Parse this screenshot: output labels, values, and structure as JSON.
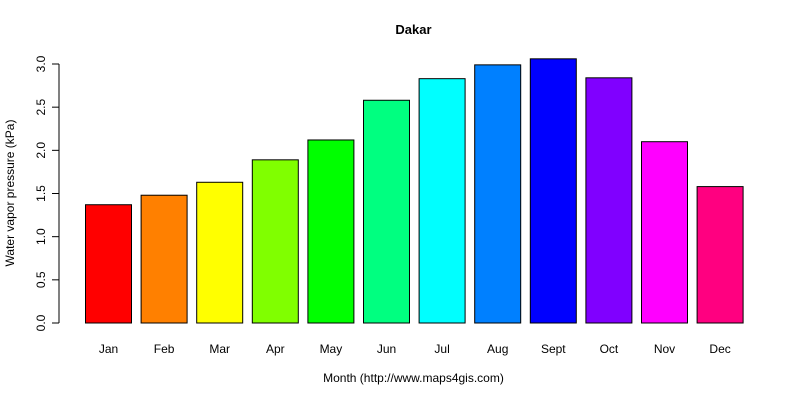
{
  "chart_data": {
    "type": "bar",
    "title": "Dakar",
    "xlabel": "Month (http://www.maps4gis.com)",
    "ylabel": "Water vapor pressure (kPa)",
    "categories": [
      "Jan",
      "Feb",
      "Mar",
      "Apr",
      "May",
      "Jun",
      "Jul",
      "Aug",
      "Sept",
      "Oct",
      "Nov",
      "Dec"
    ],
    "values": [
      1.37,
      1.48,
      1.63,
      1.89,
      2.12,
      2.58,
      2.83,
      2.99,
      3.06,
      2.84,
      2.1,
      1.58
    ],
    "colors": [
      "#FF0000",
      "#FF8000",
      "#FFFF00",
      "#80FF00",
      "#00FF00",
      "#00FF80",
      "#00FFFF",
      "#0080FF",
      "#0000FF",
      "#8000FF",
      "#FF00FF",
      "#FF0080"
    ],
    "ylim": [
      0,
      3.0
    ],
    "yticks": [
      "0.0",
      "0.5",
      "1.0",
      "1.5",
      "2.0",
      "2.5",
      "3.0"
    ],
    "grid": false,
    "legend": null
  }
}
